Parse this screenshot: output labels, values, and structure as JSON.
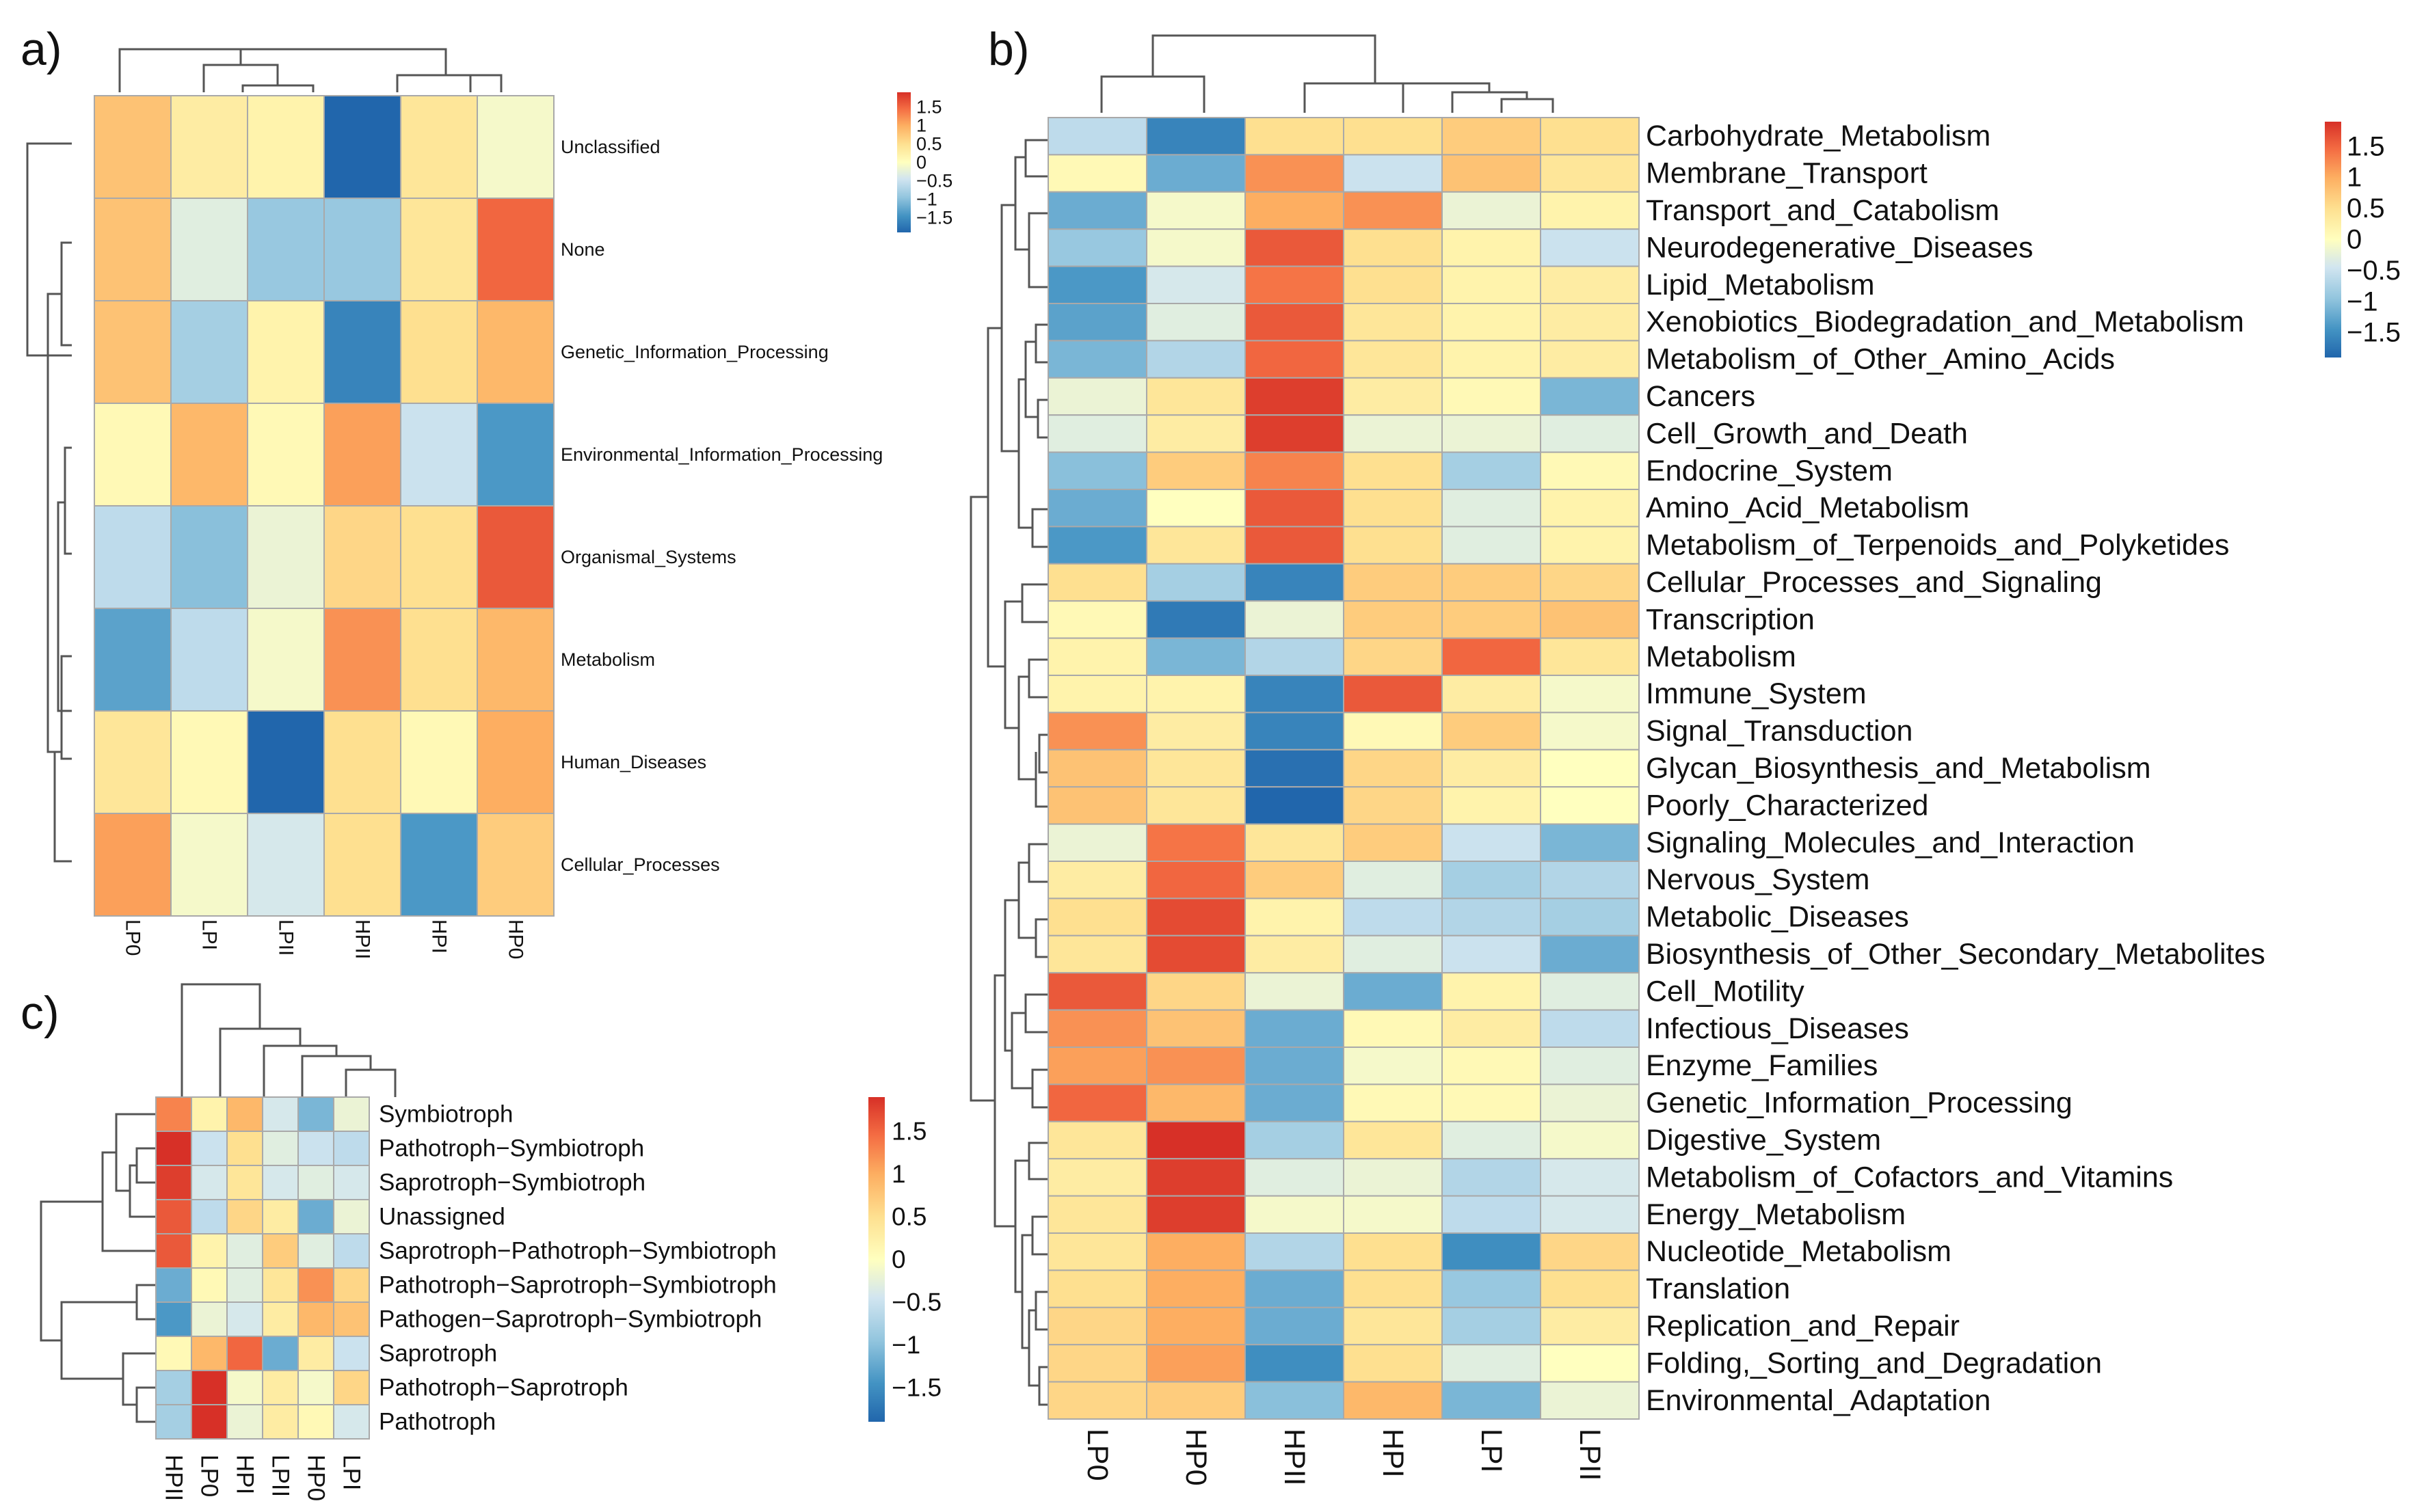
{
  "color_scale": {
    "stops": [
      "#2166ac",
      "#4393c3",
      "#92c5de",
      "#d1e5f0",
      "#ffffbf",
      "#fee090",
      "#fdae61",
      "#f46d43",
      "#d73027"
    ],
    "stop_values": [
      -1.9,
      -1.45,
      -0.95,
      -0.45,
      0.0,
      0.5,
      1.0,
      1.45,
      1.9
    ],
    "grid_color": "#a9a9a9",
    "dendrogram_color": "#555555"
  },
  "chart_data": [
    {
      "panel_label": "a)",
      "type": "heatmap",
      "columns": [
        "LP0",
        "LPI",
        "LPII",
        "HPII",
        "HPI",
        "HP0"
      ],
      "rows": [
        "Unclassified",
        "None",
        "Genetic_Information_Processing",
        "Environmental_Information_Processing",
        "Organismal_Systems",
        "Metabolism",
        "Human_Diseases",
        "Cellular_Processes"
      ],
      "values": [
        [
          0.8,
          0.3,
          0.2,
          -1.9,
          0.4,
          -0.1
        ],
        [
          0.8,
          -0.3,
          -0.9,
          -0.9,
          0.4,
          1.5
        ],
        [
          0.8,
          -0.8,
          0.2,
          -1.6,
          0.5,
          0.9
        ],
        [
          0.1,
          0.9,
          0.1,
          1.1,
          -0.5,
          -1.4
        ],
        [
          -0.6,
          -1.0,
          -0.2,
          0.6,
          0.5,
          1.6
        ],
        [
          -1.3,
          -0.6,
          -0.1,
          1.2,
          0.5,
          0.9
        ],
        [
          0.4,
          0.1,
          -1.9,
          0.5,
          0.1,
          1.0
        ],
        [
          1.1,
          -0.1,
          -0.4,
          0.5,
          -1.4,
          0.7
        ]
      ],
      "legend": {
        "ticks": [
          "1.5",
          "1",
          "0.5",
          "0",
          "−0.5",
          "−1",
          "−1.5"
        ],
        "tick_values": [
          1.5,
          1,
          0.5,
          0,
          -0.5,
          -1,
          -1.5
        ],
        "range": [
          -1.9,
          1.9
        ]
      }
    },
    {
      "panel_label": "b)",
      "type": "heatmap",
      "columns": [
        "LP0",
        "HP0",
        "HPII",
        "HPI",
        "LPI",
        "LPII"
      ],
      "rows": [
        "Carbohydrate_Metabolism",
        "Membrane_Transport",
        "Transport_and_Catabolism",
        "Neurodegenerative_Diseases",
        "Lipid_Metabolism",
        "Xenobiotics_Biodegradation_and_Metabolism",
        "Metabolism_of_Other_Amino_Acids",
        "Cancers",
        "Cell_Growth_and_Death",
        "Endocrine_System",
        "Amino_Acid_Metabolism",
        "Metabolism_of_Terpenoids_and_Polyketides",
        "Cellular_Processes_and_Signaling",
        "Transcription",
        "Metabolism",
        "Immune_System",
        "Signal_Transduction",
        "Glycan_Biosynthesis_and_Metabolism",
        "Poorly_Characterized",
        "Signaling_Molecules_and_Interaction",
        "Nervous_System",
        "Metabolic_Diseases",
        "Biosynthesis_of_Other_Secondary_Metabolites",
        "Cell_Motility",
        "Infectious_Diseases",
        "Enzyme_Families",
        "Genetic_Information_Processing",
        "Digestive_System",
        "Metabolism_of_Cofactors_and_Vitamins",
        "Energy_Metabolism",
        "Nucleotide_Metabolism",
        "Translation",
        "Replication_and_Repair",
        "Folding,_Sorting_and_Degradation",
        "Environmental_Adaptation"
      ],
      "values": [
        [
          -0.6,
          -1.6,
          0.5,
          0.5,
          0.7,
          0.5
        ],
        [
          0.1,
          -1.2,
          1.2,
          -0.5,
          0.8,
          0.4
        ],
        [
          -1.2,
          -0.1,
          1.0,
          1.2,
          -0.2,
          0.2
        ],
        [
          -0.9,
          -0.1,
          1.6,
          0.5,
          0.2,
          -0.5
        ],
        [
          -1.4,
          -0.4,
          1.4,
          0.5,
          0.2,
          0.3
        ],
        [
          -1.3,
          -0.3,
          1.6,
          0.4,
          0.2,
          0.3
        ],
        [
          -1.1,
          -0.7,
          1.5,
          0.4,
          0.2,
          0.3
        ],
        [
          -0.2,
          0.4,
          1.8,
          0.3,
          0.1,
          -1.1
        ],
        [
          -0.3,
          0.3,
          1.8,
          -0.2,
          -0.2,
          -0.3
        ],
        [
          -1.0,
          0.7,
          1.3,
          0.5,
          -0.8,
          0.1
        ],
        [
          -1.2,
          0.0,
          1.6,
          0.5,
          -0.3,
          0.2
        ],
        [
          -1.4,
          0.4,
          1.6,
          0.5,
          -0.3,
          0.2
        ],
        [
          0.5,
          -0.8,
          -1.6,
          0.7,
          0.7,
          0.6
        ],
        [
          0.1,
          -1.7,
          -0.2,
          0.7,
          0.7,
          0.8
        ],
        [
          0.2,
          -1.1,
          -0.7,
          0.6,
          1.5,
          0.4
        ],
        [
          0.2,
          0.2,
          -1.6,
          1.6,
          0.3,
          -0.1
        ],
        [
          1.2,
          0.3,
          -1.6,
          0.1,
          0.7,
          -0.1
        ],
        [
          0.8,
          0.4,
          -1.8,
          0.6,
          0.3,
          0.0
        ],
        [
          0.8,
          0.4,
          -1.9,
          0.6,
          0.2,
          0.0
        ],
        [
          -0.2,
          1.4,
          0.4,
          0.7,
          -0.5,
          -1.1
        ],
        [
          0.3,
          1.5,
          0.7,
          -0.3,
          -0.8,
          -0.7
        ],
        [
          0.5,
          1.7,
          0.2,
          -0.6,
          -0.7,
          -0.8
        ],
        [
          0.4,
          1.7,
          0.3,
          -0.3,
          -0.5,
          -1.2
        ],
        [
          1.6,
          0.6,
          -0.2,
          -1.2,
          0.2,
          -0.3
        ],
        [
          1.2,
          0.8,
          -1.2,
          0.1,
          0.3,
          -0.6
        ],
        [
          1.1,
          1.2,
          -1.2,
          -0.1,
          0.1,
          -0.3
        ],
        [
          1.5,
          0.9,
          -1.2,
          0.1,
          0.1,
          -0.2
        ],
        [
          0.4,
          1.9,
          -0.8,
          0.4,
          -0.3,
          -0.1
        ],
        [
          0.3,
          1.8,
          -0.3,
          -0.2,
          -0.7,
          -0.4
        ],
        [
          0.4,
          1.8,
          -0.1,
          -0.1,
          -0.6,
          -0.4
        ],
        [
          0.4,
          1.0,
          -0.7,
          0.5,
          -1.5,
          0.6
        ],
        [
          0.5,
          1.0,
          -1.2,
          0.5,
          -0.9,
          0.5
        ],
        [
          0.6,
          1.0,
          -1.2,
          0.4,
          -0.8,
          0.3
        ],
        [
          0.6,
          1.1,
          -1.5,
          0.5,
          -0.3,
          0.0
        ],
        [
          0.6,
          0.7,
          -1.0,
          0.9,
          -1.1,
          -0.2
        ]
      ],
      "legend": {
        "ticks": [
          "1.5",
          "1",
          "0.5",
          "0",
          "−0.5",
          "−1",
          "−1.5"
        ],
        "tick_values": [
          1.5,
          1,
          0.5,
          0,
          -0.5,
          -1,
          -1.5
        ],
        "range": [
          -1.9,
          1.9
        ]
      }
    },
    {
      "panel_label": "c)",
      "type": "heatmap",
      "columns": [
        "HPII",
        "LP0",
        "HPI",
        "LPII",
        "HP0",
        "LPI"
      ],
      "rows": [
        "Symbiotroph",
        "Pathotroph−Symbiotroph",
        "Saprotroph−Symbiotroph",
        "Unassigned",
        "Saprotroph−Pathotroph−Symbiotroph",
        "Pathotroph−Saprotroph−Symbiotroph",
        "Pathogen−Saprotroph−Symbiotroph",
        "Saprotroph",
        "Pathotroph−Saprotroph",
        "Pathotroph"
      ],
      "values": [
        [
          1.3,
          0.2,
          0.9,
          -0.4,
          -1.1,
          -0.2
        ],
        [
          1.9,
          -0.5,
          0.5,
          -0.3,
          -0.5,
          -0.6
        ],
        [
          1.8,
          -0.4,
          0.4,
          -0.4,
          -0.3,
          -0.4
        ],
        [
          1.6,
          -0.6,
          0.6,
          0.3,
          -1.2,
          -0.2
        ],
        [
          1.6,
          0.2,
          -0.3,
          0.7,
          -0.3,
          -0.6
        ],
        [
          -1.2,
          0.1,
          -0.3,
          0.4,
          1.2,
          0.6
        ],
        [
          -1.4,
          -0.2,
          -0.4,
          0.3,
          0.9,
          0.8
        ],
        [
          0.1,
          0.9,
          1.5,
          -1.2,
          0.3,
          -0.5
        ],
        [
          -0.8,
          1.9,
          -0.1,
          0.3,
          -0.1,
          0.6
        ],
        [
          -0.8,
          1.9,
          -0.2,
          0.3,
          0.1,
          -0.4
        ]
      ],
      "legend": {
        "ticks": [
          "1.5",
          "1",
          "0.5",
          "0",
          "−0.5",
          "−1",
          "−1.5"
        ],
        "tick_values": [
          1.5,
          1,
          0.5,
          0,
          -0.5,
          -1,
          -1.5
        ],
        "range": [
          -1.9,
          1.9
        ]
      }
    }
  ]
}
